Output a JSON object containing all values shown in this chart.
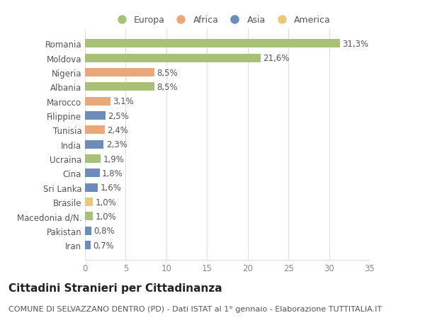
{
  "countries": [
    "Romania",
    "Moldova",
    "Nigeria",
    "Albania",
    "Marocco",
    "Filippine",
    "Tunisia",
    "India",
    "Ucraina",
    "Cina",
    "Sri Lanka",
    "Brasile",
    "Macedonia d/N.",
    "Pakistan",
    "Iran"
  ],
  "values": [
    31.3,
    21.6,
    8.5,
    8.5,
    3.1,
    2.5,
    2.4,
    2.3,
    1.9,
    1.8,
    1.6,
    1.0,
    1.0,
    0.8,
    0.7
  ],
  "labels": [
    "31,3%",
    "21,6%",
    "8,5%",
    "8,5%",
    "3,1%",
    "2,5%",
    "2,4%",
    "2,3%",
    "1,9%",
    "1,8%",
    "1,6%",
    "1,0%",
    "1,0%",
    "0,8%",
    "0,7%"
  ],
  "colors": [
    "#a8c07a",
    "#a8c07a",
    "#e8a87c",
    "#a8c07a",
    "#e8a87c",
    "#6b8cba",
    "#e8a87c",
    "#6b8cba",
    "#a8c07a",
    "#6b8cba",
    "#6b8cba",
    "#e8c87a",
    "#a8c07a",
    "#6b8cba",
    "#6b8cba"
  ],
  "legend_labels": [
    "Europa",
    "Africa",
    "Asia",
    "America"
  ],
  "legend_colors": [
    "#a8c07a",
    "#e8a87c",
    "#6b8cba",
    "#e8c87a"
  ],
  "title": "Cittadini Stranieri per Cittadinanza",
  "subtitle": "COMUNE DI SELVAZZANO DENTRO (PD) - Dati ISTAT al 1° gennaio - Elaborazione TUTTITALIA.IT",
  "xlim": [
    0,
    35
  ],
  "xticks": [
    0,
    5,
    10,
    15,
    20,
    25,
    30,
    35
  ],
  "background_color": "#ffffff",
  "bar_height": 0.6,
  "grid_color": "#dddddd",
  "label_fontsize": 8.5,
  "tick_fontsize": 8.5,
  "title_fontsize": 11,
  "subtitle_fontsize": 8
}
